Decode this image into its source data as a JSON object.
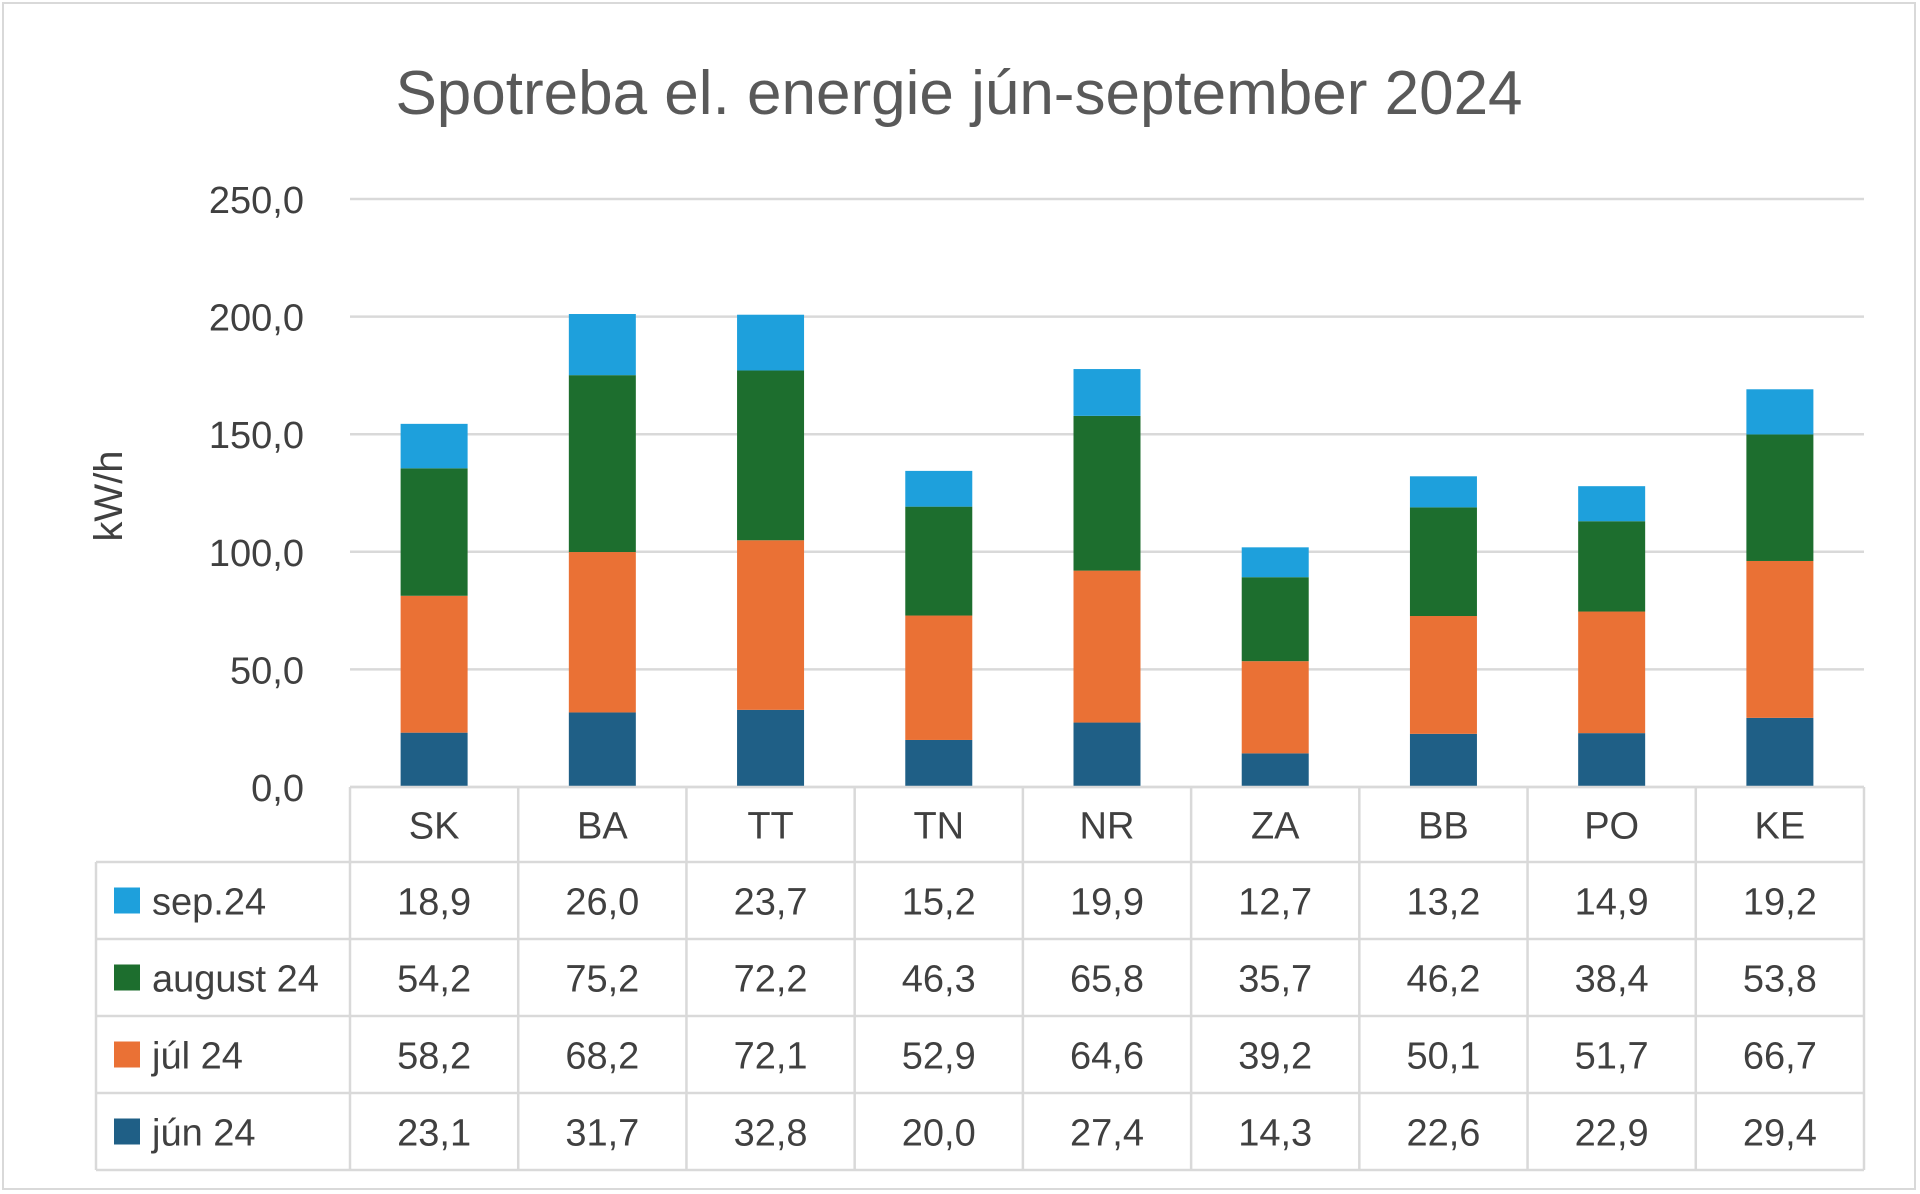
{
  "chart_data": {
    "type": "bar",
    "stacked": true,
    "title": "Spotreba el. energie jún-september 2024",
    "ylabel": "kW/h",
    "xlabel": "",
    "ylim": [
      0,
      250
    ],
    "yticks": [
      "0,0",
      "50,0",
      "100,0",
      "150,0",
      "200,0",
      "250,0"
    ],
    "grid": true,
    "legend": "data-table-left",
    "categories": [
      "SK",
      "BA",
      "TT",
      "TN",
      "NR",
      "ZA",
      "BB",
      "PO",
      "KE"
    ],
    "series": [
      {
        "name": "jún 24",
        "color": "#1f5f86",
        "values": [
          23.1,
          31.7,
          32.8,
          20.0,
          27.4,
          14.3,
          22.6,
          22.9,
          29.4
        ],
        "labels": [
          "23,1",
          "31,7",
          "32,8",
          "20,0",
          "27,4",
          "14,3",
          "22,6",
          "22,9",
          "29,4"
        ]
      },
      {
        "name": "júl 24",
        "color": "#ea7135",
        "values": [
          58.2,
          68.2,
          72.1,
          52.9,
          64.6,
          39.2,
          50.1,
          51.7,
          66.7
        ],
        "labels": [
          "58,2",
          "68,2",
          "72,1",
          "52,9",
          "64,6",
          "39,2",
          "50,1",
          "51,7",
          "66,7"
        ]
      },
      {
        "name": "august 24",
        "color": "#1d6e2e",
        "values": [
          54.2,
          75.2,
          72.2,
          46.3,
          65.8,
          35.7,
          46.2,
          38.4,
          53.8
        ],
        "labels": [
          "54,2",
          "75,2",
          "72,2",
          "46,3",
          "65,8",
          "35,7",
          "46,2",
          "38,4",
          "53,8"
        ]
      },
      {
        "name": "sep.24",
        "color": "#1ea0dc",
        "values": [
          18.9,
          26.0,
          23.7,
          15.2,
          19.9,
          12.7,
          13.2,
          14.9,
          19.2
        ],
        "labels": [
          "18,9",
          "26,0",
          "23,7",
          "15,2",
          "19,9",
          "12,7",
          "13,2",
          "14,9",
          "19,2"
        ]
      }
    ]
  }
}
